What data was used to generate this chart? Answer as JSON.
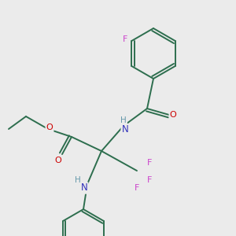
{
  "background_color": "#ebebeb",
  "bond_color": "#2d6e4e",
  "atom_colors": {
    "F": "#cc44cc",
    "O": "#cc0000",
    "N": "#3333bb",
    "H": "#6699aa",
    "C": "#2d6e4e"
  },
  "figsize": [
    3.0,
    3.0
  ],
  "dpi": 100
}
